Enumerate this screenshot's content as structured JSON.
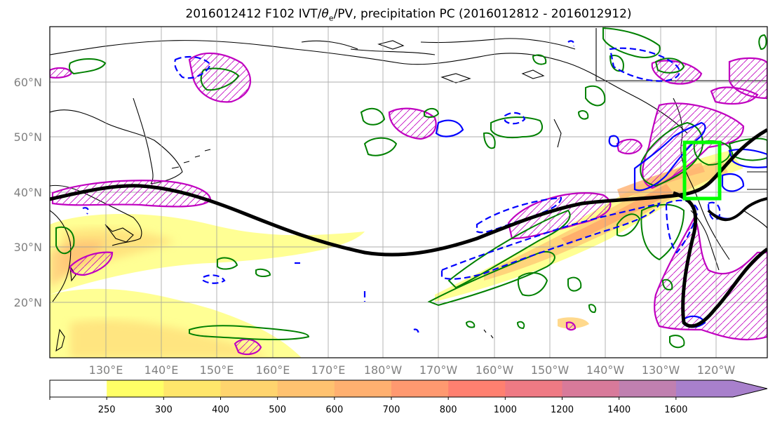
{
  "title": {
    "prefix": "2016012412 F102 IVT/",
    "theta": "θ",
    "theta_sub": "e",
    "suffix": "/PV, precipitation PC (2016012812 - 2016012912)"
  },
  "map": {
    "lat_labels": [
      "60°N",
      "50°N",
      "40°N",
      "30°N",
      "20°N"
    ],
    "lon_labels": [
      "130°E",
      "140°E",
      "150°E",
      "160°E",
      "170°E",
      "180°W",
      "170°W",
      "160°W",
      "150°W",
      "140°W",
      "130°W",
      "120°W"
    ],
    "contour_colors": {
      "positive_pc": "#008000",
      "negative_pc": "#0000ff",
      "theta_pv": "#c000c0",
      "pv_line": "#000000",
      "target_box": "#00ff00"
    }
  },
  "colorbar": {
    "levels": [
      "250",
      "300",
      "400",
      "500",
      "600",
      "700",
      "800",
      "1000",
      "1200",
      "1400",
      "1600"
    ],
    "colors": [
      "#ffffff",
      "#ffff66",
      "#ffe66b",
      "#ffd46e",
      "#ffc270",
      "#ffb070",
      "#ff9970",
      "#ff8070",
      "#ef7a84",
      "#d87a9a",
      "#c080b0",
      "#a880cc"
    ]
  }
}
